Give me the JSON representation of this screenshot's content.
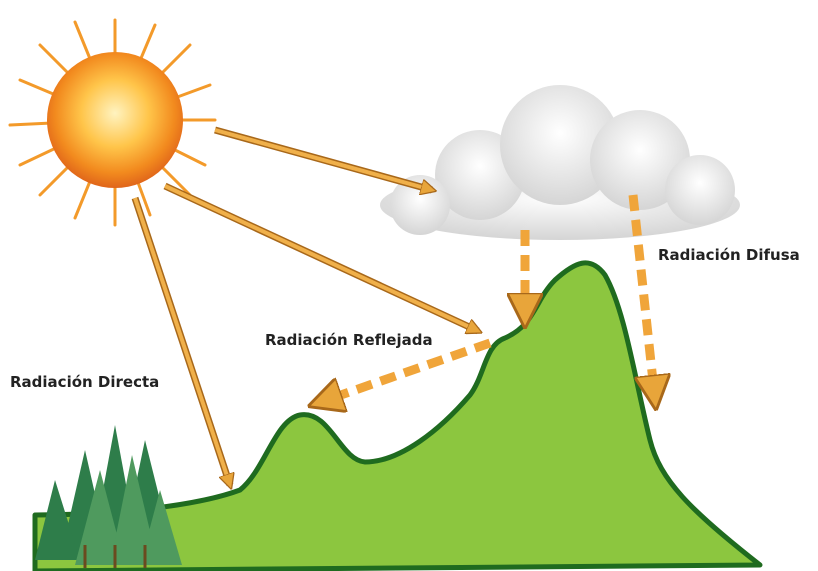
{
  "labels": {
    "direct": "Radiación Directa",
    "reflected": "Radiación Reflejada",
    "diffuse": "Radiación Difusa"
  }
}
